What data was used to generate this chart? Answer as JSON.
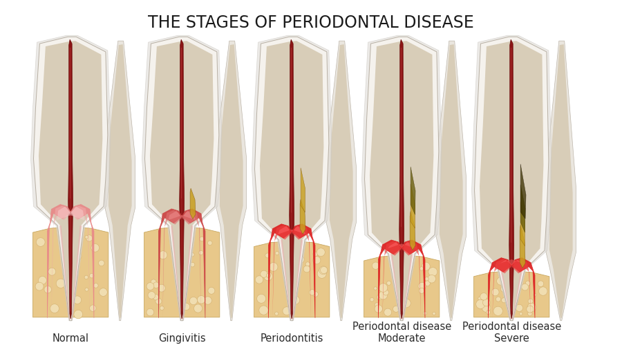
{
  "title": "THE STAGES OF PERIODONTAL DISEASE",
  "title_fontsize": 17,
  "title_color": "#1a1a1a",
  "background_color": "#ffffff",
  "labels": [
    "Normal",
    "Gingivitis",
    "Periodontitis",
    "Periodontal disease\nModerate",
    "Periodontal disease\nSevere"
  ],
  "label_fontsize": 10.5,
  "gum_recession": [
    0.0,
    0.05,
    0.22,
    0.4,
    0.6
  ],
  "bone_loss": [
    0.0,
    0.0,
    0.18,
    0.36,
    0.56
  ],
  "inflammation": [
    0,
    1,
    2,
    3,
    4
  ],
  "colors": {
    "enamel_outer": "#e8e4dc",
    "enamel_white": "#f5f2ed",
    "enamel_rim": "#d0ccc4",
    "dentin": "#d8cdb8",
    "pulp_dark": "#6b0d0d",
    "pulp_mid": "#8b1515",
    "pulp_light": "#a03030",
    "gum_normal_outer": "#e88888",
    "gum_normal_mid": "#f0a8a8",
    "gum_normal_inner": "#f8cece",
    "gum_inflamed_outer": "#cc1111",
    "gum_inflamed_mid": "#dd3333",
    "gum_inflamed_inner": "#ee5555",
    "bone_fill": "#e8c88a",
    "bone_edge": "#c8a860",
    "bone_pore": "#d4b070",
    "bone_pore_fill": "#f0ddb0",
    "tartar_yellow": "#c8a020",
    "tartar_dark": "#8a6010",
    "plaque_olive": "#6b6010",
    "necrotic_dark": "#3a3000",
    "bg": "#ffffff",
    "tooth_line": "#b8b0a4",
    "periodontal": "#d0c8bc",
    "pdl_pink": "#e8a8a8",
    "cementum": "#c8b898"
  }
}
